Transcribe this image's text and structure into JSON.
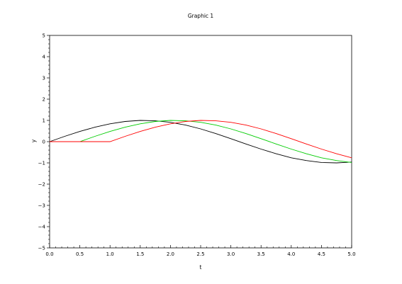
{
  "chart_data": {
    "type": "line",
    "title": "Graphic 1",
    "xlabel": "t",
    "ylabel": "y",
    "xlim": [
      0,
      5
    ],
    "ylim": [
      -5,
      5
    ],
    "x_ticks": [
      0.0,
      0.5,
      1.0,
      1.5,
      2.0,
      2.5,
      3.0,
      3.5,
      4.0,
      4.5,
      5.0
    ],
    "x_tick_labels": [
      "0.0",
      "0.5",
      "1.0",
      "1.5",
      "2.0",
      "2.5",
      "3.0",
      "3.5",
      "4.0",
      "4.5",
      "5.0"
    ],
    "y_ticks": [
      -5,
      -4,
      -3,
      -2,
      -1,
      0,
      1,
      2,
      3,
      4,
      5
    ],
    "y_tick_labels": [
      "−5",
      "−4",
      "−3",
      "−2",
      "−1",
      "0",
      "1",
      "2",
      "3",
      "4",
      "5"
    ],
    "grid": false,
    "legend": "none",
    "x": [
      0.0,
      0.25,
      0.5,
      0.75,
      1.0,
      1.25,
      1.5,
      1.75,
      2.0,
      2.25,
      2.5,
      2.75,
      3.0,
      3.25,
      3.5,
      3.75,
      4.0,
      4.25,
      4.5,
      4.75,
      5.0
    ],
    "series": [
      {
        "color": "#000000",
        "values": [
          0.0,
          0.25,
          0.48,
          0.68,
          0.84,
          0.95,
          1.0,
          0.98,
          0.91,
          0.78,
          0.6,
          0.38,
          0.14,
          -0.11,
          -0.35,
          -0.57,
          -0.76,
          -0.89,
          -0.98,
          -1.0,
          -0.96
        ]
      },
      {
        "color": "#00cc00",
        "values": [
          0.0,
          0.0,
          0.0,
          0.25,
          0.48,
          0.68,
          0.84,
          0.95,
          1.0,
          0.98,
          0.91,
          0.78,
          0.6,
          0.38,
          0.14,
          -0.11,
          -0.35,
          -0.57,
          -0.76,
          -0.89,
          -0.98
        ]
      },
      {
        "color": "#ff0000",
        "values": [
          0.0,
          0.0,
          0.0,
          0.0,
          0.0,
          0.25,
          0.48,
          0.68,
          0.84,
          0.95,
          1.0,
          0.98,
          0.91,
          0.78,
          0.6,
          0.38,
          0.14,
          -0.11,
          -0.35,
          -0.57,
          -0.76
        ]
      }
    ]
  }
}
